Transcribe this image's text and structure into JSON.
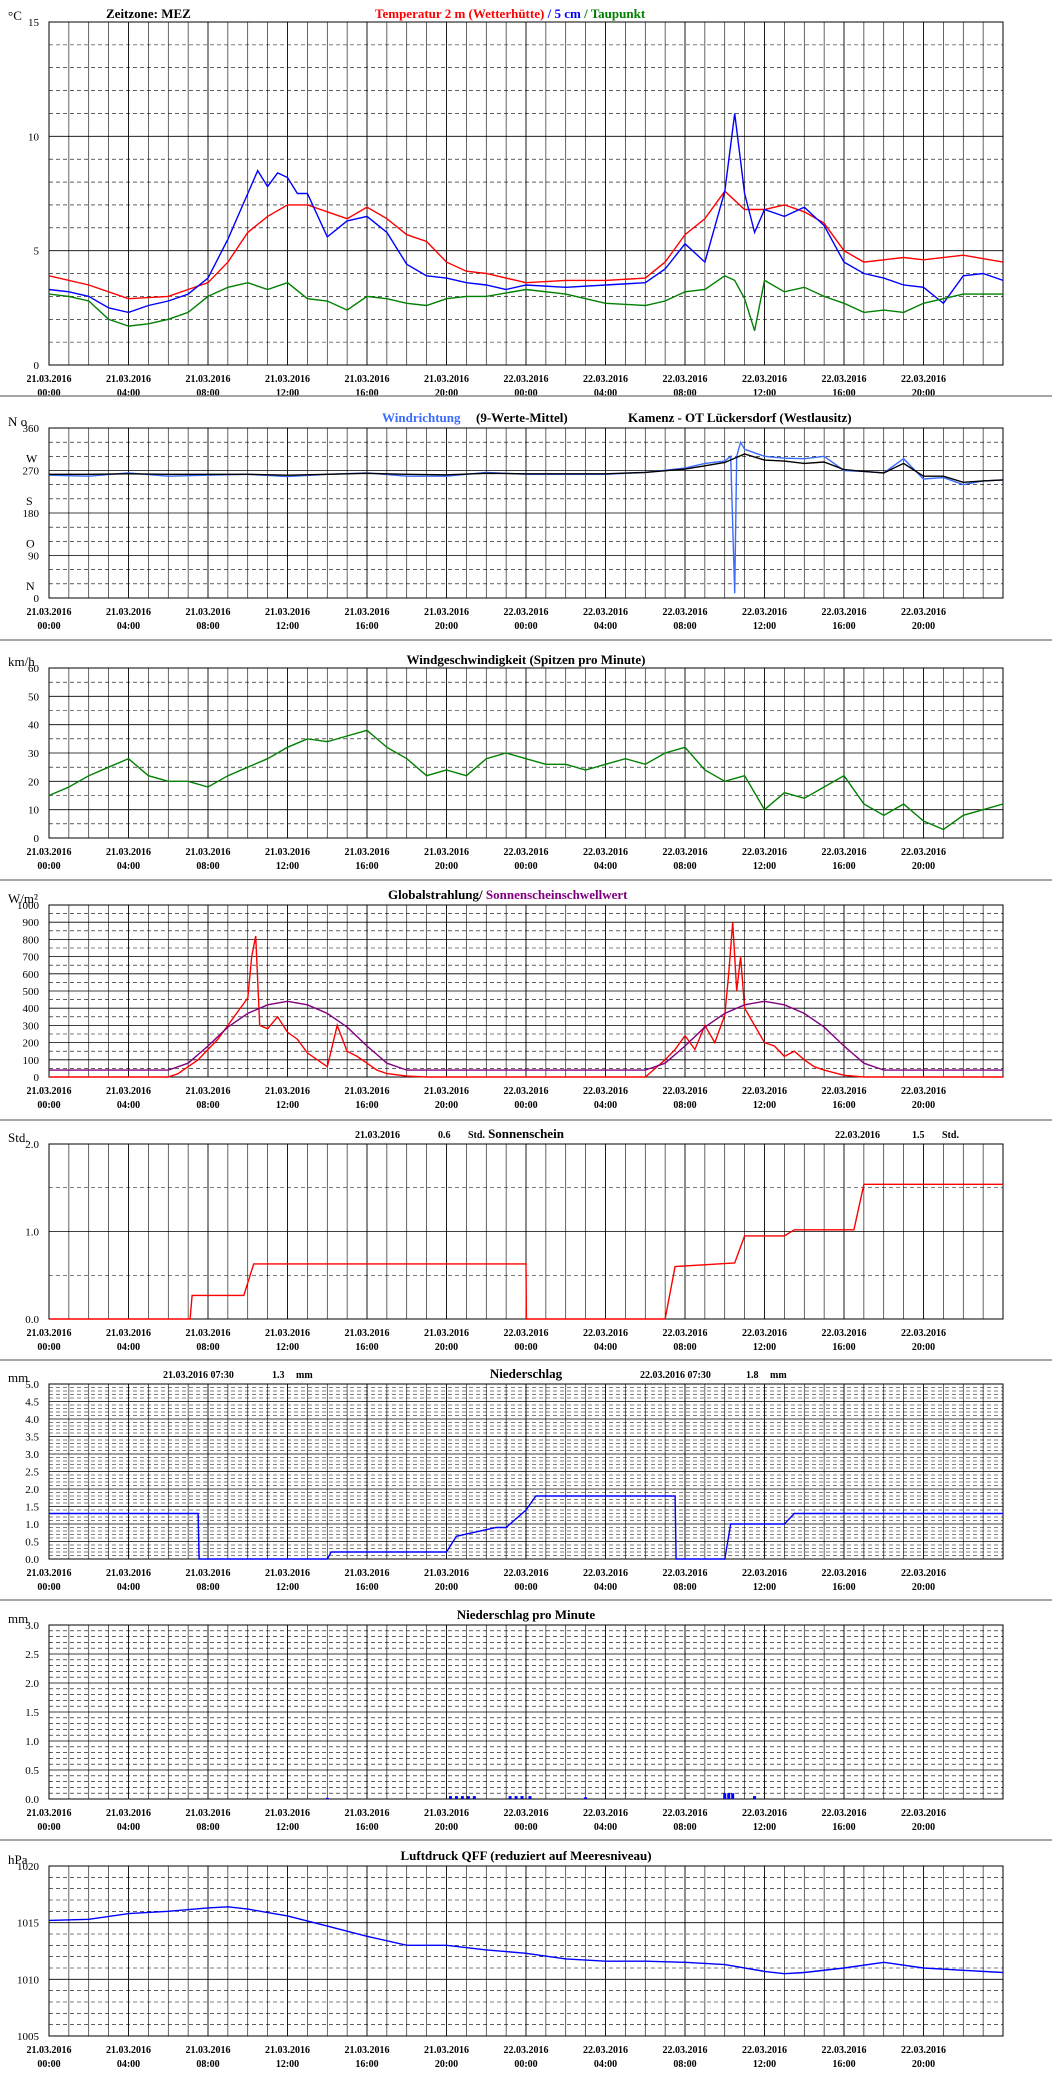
{
  "timezone_label": "Zeitzone: MEZ",
  "station": "Kamenz - OT Lückersdorf (Westlausitz)",
  "x_ticks": [
    [
      "21.03.2016",
      "00:00"
    ],
    [
      "21.03.2016",
      "04:00"
    ],
    [
      "21.03.2016",
      "08:00"
    ],
    [
      "21.03.2016",
      "12:00"
    ],
    [
      "21.03.2016",
      "16:00"
    ],
    [
      "21.03.2016",
      "20:00"
    ],
    [
      "22.03.2016",
      "00:00"
    ],
    [
      "22.03.2016",
      "04:00"
    ],
    [
      "22.03.2016",
      "08:00"
    ],
    [
      "22.03.2016",
      "12:00"
    ],
    [
      "22.03.2016",
      "16:00"
    ],
    [
      "22.03.2016",
      "20:00"
    ]
  ],
  "colors": {
    "red": "#ff0000",
    "blue": "#0000ff",
    "lightblue": "#3a6bff",
    "green": "#008000",
    "black": "#000000",
    "purple": "#800080"
  },
  "chart_data": [
    {
      "id": "temp",
      "type": "line",
      "unit": "°C",
      "ylim": [
        0,
        15
      ],
      "y_ticks": [
        "0",
        "5",
        "10",
        "15"
      ],
      "title_parts": [
        {
          "text": "Temperatur 2 m (Wetterhütte)",
          "color": "#ff0000"
        },
        {
          "text": "  /  ",
          "color": "#0000ff"
        },
        {
          "text": "5 cm",
          "color": "#0000ff"
        },
        {
          "text": " / ",
          "color": "#008000"
        },
        {
          "text": "Taupunkt",
          "color": "#008000"
        }
      ],
      "series": [
        {
          "name": "Temperatur 2 m (Wetterhütte)",
          "color": "#ff0000",
          "x": [
            0,
            2,
            4,
            6,
            7,
            8,
            9,
            10,
            11,
            12,
            13,
            14,
            15,
            16,
            17,
            18,
            19,
            20,
            21,
            22,
            24,
            26,
            28,
            30,
            31,
            32,
            33,
            34,
            35,
            36,
            37,
            38,
            39,
            40,
            41,
            42,
            43,
            44,
            46,
            48
          ],
          "y": [
            3.9,
            3.5,
            2.9,
            3.0,
            3.3,
            3.6,
            4.5,
            5.8,
            6.5,
            7.0,
            7.0,
            6.7,
            6.4,
            6.9,
            6.4,
            5.7,
            5.4,
            4.5,
            4.1,
            4.0,
            3.6,
            3.7,
            3.7,
            3.8,
            4.5,
            5.7,
            6.4,
            7.6,
            6.8,
            6.8,
            7.0,
            6.7,
            6.2,
            5.0,
            4.5,
            4.6,
            4.7,
            4.6,
            4.8,
            4.5
          ]
        },
        {
          "name": "5 cm",
          "color": "#0000ff",
          "x": [
            0,
            1,
            2,
            3,
            4,
            5,
            6,
            7,
            8,
            9,
            10,
            10.5,
            11,
            11.5,
            12,
            12.5,
            13,
            14,
            15,
            16,
            17,
            18,
            19,
            20,
            21,
            22,
            23,
            24,
            26,
            28,
            30,
            31,
            32,
            33,
            34,
            34.5,
            35,
            35.5,
            36,
            37,
            38,
            39,
            40,
            41,
            42,
            43,
            44,
            45,
            46,
            47,
            48
          ],
          "y": [
            3.3,
            3.2,
            3.0,
            2.5,
            2.3,
            2.6,
            2.8,
            3.1,
            3.8,
            5.5,
            7.5,
            8.5,
            7.8,
            8.4,
            8.2,
            7.5,
            7.5,
            5.6,
            6.3,
            6.5,
            5.8,
            4.4,
            3.9,
            3.8,
            3.6,
            3.5,
            3.3,
            3.5,
            3.4,
            3.5,
            3.6,
            4.2,
            5.3,
            4.5,
            7.6,
            11.0,
            7.5,
            5.8,
            6.8,
            6.5,
            6.9,
            6.1,
            4.5,
            4.0,
            3.8,
            3.5,
            3.4,
            2.7,
            3.9,
            4.0,
            3.7
          ]
        },
        {
          "name": "Taupunkt",
          "color": "#008000",
          "x": [
            0,
            1,
            2,
            3,
            4,
            5,
            6,
            7,
            8,
            9,
            10,
            11,
            12,
            13,
            14,
            15,
            16,
            17,
            18,
            19,
            20,
            21,
            22,
            24,
            26,
            28,
            30,
            31,
            32,
            33,
            34,
            34.5,
            35,
            35.5,
            36,
            37,
            38,
            39,
            40,
            41,
            42,
            43,
            44,
            46,
            48
          ],
          "y": [
            3.1,
            3.0,
            2.8,
            2.0,
            1.7,
            1.8,
            2.0,
            2.3,
            3.0,
            3.4,
            3.6,
            3.3,
            3.6,
            2.9,
            2.8,
            2.4,
            3.0,
            2.9,
            2.7,
            2.6,
            2.9,
            3.0,
            3.0,
            3.3,
            3.1,
            2.7,
            2.6,
            2.8,
            3.2,
            3.3,
            3.9,
            3.7,
            2.9,
            1.5,
            3.7,
            3.2,
            3.4,
            3.0,
            2.7,
            2.3,
            2.4,
            2.3,
            2.7,
            3.1,
            3.1
          ]
        }
      ]
    },
    {
      "id": "wdir",
      "type": "line",
      "unit": "N o",
      "ylim": [
        0,
        360
      ],
      "y_ticks": [
        "0",
        "90",
        "180",
        "270",
        "360"
      ],
      "compass": [
        "N",
        "O",
        "S",
        "W"
      ],
      "title": "Windrichtung",
      "title_suffix": "(9-Werte-Mittel)",
      "series": [
        {
          "name": "Windrichtung",
          "color": "#3a6bff",
          "x": [
            0,
            2,
            4,
            6,
            8,
            10,
            12,
            14,
            16,
            18,
            20,
            22,
            24,
            26,
            28,
            30,
            32,
            33,
            34,
            34.3,
            34.5,
            34.6,
            34.8,
            35,
            36,
            37,
            38,
            39,
            40,
            41,
            42,
            43,
            44,
            45,
            46,
            47,
            48
          ],
          "y": [
            260,
            258,
            265,
            258,
            260,
            262,
            257,
            262,
            265,
            258,
            258,
            266,
            262,
            262,
            262,
            266,
            275,
            285,
            290,
            300,
            10,
            300,
            330,
            315,
            300,
            296,
            295,
            300,
            270,
            268,
            265,
            295,
            252,
            255,
            240,
            248,
            250
          ]
        },
        {
          "name": "9-Werte-Mittel",
          "color": "#000000",
          "x": [
            0,
            2,
            4,
            6,
            8,
            10,
            12,
            14,
            16,
            18,
            20,
            22,
            24,
            26,
            28,
            30,
            32,
            33,
            34,
            35,
            36,
            37,
            38,
            39,
            40,
            41,
            42,
            43,
            44,
            45,
            46,
            47,
            48
          ],
          "y": [
            262,
            262,
            263,
            262,
            262,
            262,
            260,
            262,
            264,
            262,
            261,
            264,
            263,
            263,
            263,
            266,
            273,
            280,
            287,
            305,
            292,
            290,
            285,
            288,
            272,
            268,
            265,
            285,
            258,
            258,
            245,
            248,
            250
          ]
        }
      ]
    },
    {
      "id": "wspeed",
      "type": "line",
      "unit": "km/h",
      "ylim": [
        0,
        60
      ],
      "y_ticks": [
        "0",
        "10",
        "20",
        "30",
        "40",
        "50",
        "60"
      ],
      "title": "Windgeschwindigkeit (Spitzen pro Minute)",
      "series": [
        {
          "name": "Windgeschwindigkeit",
          "color": "#008000",
          "x": [
            0,
            1,
            2,
            3,
            4,
            5,
            6,
            7,
            8,
            9,
            10,
            11,
            12,
            13,
            14,
            15,
            16,
            17,
            18,
            19,
            20,
            21,
            22,
            23,
            24,
            25,
            26,
            27,
            28,
            29,
            30,
            31,
            32,
            33,
            34,
            35,
            36,
            37,
            38,
            39,
            40,
            41,
            42,
            43,
            44,
            45,
            46,
            47,
            48
          ],
          "y": [
            15,
            18,
            22,
            25,
            28,
            22,
            20,
            20,
            18,
            22,
            25,
            28,
            32,
            35,
            34,
            36,
            38,
            32,
            28,
            22,
            24,
            22,
            28,
            30,
            28,
            26,
            26,
            24,
            26,
            28,
            26,
            30,
            32,
            24,
            20,
            22,
            10,
            16,
            14,
            18,
            22,
            12,
            8,
            12,
            6,
            3,
            8,
            10,
            12
          ]
        }
      ]
    },
    {
      "id": "radiation",
      "type": "line",
      "unit": "W/m²",
      "ylim": [
        0,
        1000
      ],
      "y_ticks": [
        "0",
        "100",
        "200",
        "300",
        "400",
        "500",
        "600",
        "700",
        "800",
        "900",
        "1000"
      ],
      "title": "Globalstrahlung/",
      "title2": " Sonnenscheinschwellwert",
      "series": [
        {
          "name": "Globalstrahlung",
          "color": "#ff0000",
          "x": [
            0,
            6,
            6.5,
            7,
            7.5,
            8,
            8.5,
            9,
            9.5,
            10,
            10.2,
            10.4,
            10.6,
            11,
            11.5,
            12,
            12.5,
            13,
            13.5,
            14,
            14.5,
            15,
            15.5,
            16,
            16.5,
            17,
            18,
            19,
            24,
            30,
            30.5,
            31,
            31.5,
            32,
            32.5,
            33,
            33.5,
            34,
            34.2,
            34.4,
            34.6,
            34.8,
            35,
            35.5,
            36,
            36.5,
            37,
            37.5,
            38,
            38.5,
            39,
            40,
            41,
            48
          ],
          "y": [
            0,
            0,
            20,
            60,
            100,
            160,
            220,
            300,
            380,
            460,
            700,
            820,
            300,
            280,
            350,
            260,
            220,
            140,
            100,
            60,
            300,
            150,
            120,
            80,
            40,
            20,
            5,
            0,
            0,
            0,
            50,
            100,
            160,
            240,
            160,
            300,
            200,
            360,
            600,
            900,
            500,
            700,
            400,
            300,
            200,
            180,
            120,
            150,
            100,
            60,
            40,
            10,
            0,
            0
          ]
        },
        {
          "name": "Sonnenscheinschwellwert",
          "color": "#800080",
          "x": [
            0,
            6,
            7,
            8,
            9,
            10,
            11,
            12,
            13,
            14,
            15,
            16,
            17,
            18,
            30,
            31,
            32,
            33,
            34,
            35,
            36,
            37,
            38,
            39,
            40,
            41,
            42,
            48
          ],
          "y": [
            40,
            40,
            80,
            180,
            290,
            370,
            420,
            440,
            420,
            370,
            290,
            180,
            80,
            40,
            40,
            80,
            180,
            290,
            370,
            420,
            440,
            420,
            370,
            290,
            180,
            80,
            40,
            40
          ]
        }
      ]
    },
    {
      "id": "sunshine",
      "type": "line",
      "unit": "Std.",
      "ylim": [
        0,
        2
      ],
      "y_ticks": [
        "0.0",
        "1.0",
        "2.0"
      ],
      "title": "Sonnenschein",
      "day_totals": [
        {
          "date": "21.03.2016",
          "value": "0.6",
          "unit": "Std."
        },
        {
          "date": "22.03.2016",
          "value": "1.5",
          "unit": "Std."
        }
      ],
      "series": [
        {
          "name": "Sonnenschein",
          "color": "#ff0000",
          "x": [
            0,
            7.1,
            7.2,
            9.8,
            10.3,
            24,
            24.02,
            31,
            31.5,
            34.5,
            35,
            37,
            37.5,
            40.5,
            41,
            48
          ],
          "y": [
            0,
            0,
            0.27,
            0.27,
            0.63,
            0.63,
            0,
            0,
            0.6,
            0.64,
            0.95,
            0.95,
            1.02,
            1.02,
            1.54,
            1.54
          ]
        }
      ]
    },
    {
      "id": "precip",
      "type": "line",
      "unit": "mm",
      "ylim": [
        0,
        5
      ],
      "y_ticks": [
        "0.0",
        "0.5",
        "1.0",
        "1.5",
        "2.0",
        "2.5",
        "3.0",
        "3.5",
        "4.0",
        "4.5",
        "5.0"
      ],
      "title": "Niederschlag",
      "day_totals": [
        {
          "date": "21.03.2016 07:30",
          "value": "1.3",
          "unit": "mm"
        },
        {
          "date": "22.03.2016 07:30",
          "value": "1.8",
          "unit": "mm"
        }
      ],
      "series": [
        {
          "name": "Niederschlag",
          "color": "#0000ff",
          "x": [
            0,
            7.5,
            7.55,
            14,
            14.2,
            20,
            20.5,
            22.5,
            23,
            24,
            24.5,
            31.5,
            31.55,
            34,
            34.3,
            37,
            37.5,
            48
          ],
          "y": [
            1.3,
            1.3,
            0,
            0,
            0.2,
            0.2,
            0.65,
            0.9,
            0.9,
            1.4,
            1.8,
            1.8,
            0,
            0,
            1.0,
            1.0,
            1.3,
            1.3
          ]
        }
      ]
    },
    {
      "id": "precip_min",
      "type": "bar",
      "unit": "mm",
      "ylim": [
        0,
        3
      ],
      "y_ticks": [
        "0.0",
        "0.5",
        "1.0",
        "1.5",
        "2.0",
        "2.5",
        "3.0"
      ],
      "title": "Niederschlag pro Minute",
      "series": [
        {
          "name": "Niederschlag pro Minute",
          "color": "#0000ff",
          "x": [
            14.0,
            20.2,
            20.5,
            20.8,
            21.1,
            21.4,
            23.2,
            23.5,
            23.8,
            24.2,
            27.0,
            34.0,
            34.2,
            34.4,
            35.5
          ],
          "y": [
            0.02,
            0.05,
            0.05,
            0.05,
            0.05,
            0.05,
            0.05,
            0.05,
            0.05,
            0.05,
            0.03,
            0.1,
            0.1,
            0.1,
            0.05
          ]
        }
      ]
    },
    {
      "id": "pressure",
      "type": "line",
      "unit": "hPa",
      "ylim": [
        1005,
        1020
      ],
      "y_ticks": [
        "1005",
        "1010",
        "1015",
        "1020"
      ],
      "title": "Luftdruck QFF (reduziert auf Meeresniveau)",
      "series": [
        {
          "name": "Luftdruck QFF",
          "color": "#0000ff",
          "x": [
            0,
            2,
            4,
            6,
            8,
            9,
            10,
            12,
            14,
            16,
            18,
            20,
            22,
            24,
            26,
            28,
            30,
            32,
            34,
            36,
            37,
            38,
            40,
            42,
            44,
            46,
            48
          ],
          "y": [
            1015.2,
            1015.3,
            1015.8,
            1016.0,
            1016.3,
            1016.4,
            1016.2,
            1015.6,
            1014.7,
            1013.8,
            1013.0,
            1013.0,
            1012.6,
            1012.3,
            1011.8,
            1011.6,
            1011.6,
            1011.5,
            1011.3,
            1010.7,
            1010.5,
            1010.6,
            1011.0,
            1011.5,
            1011.0,
            1010.8,
            1010.6
          ]
        }
      ]
    }
  ]
}
